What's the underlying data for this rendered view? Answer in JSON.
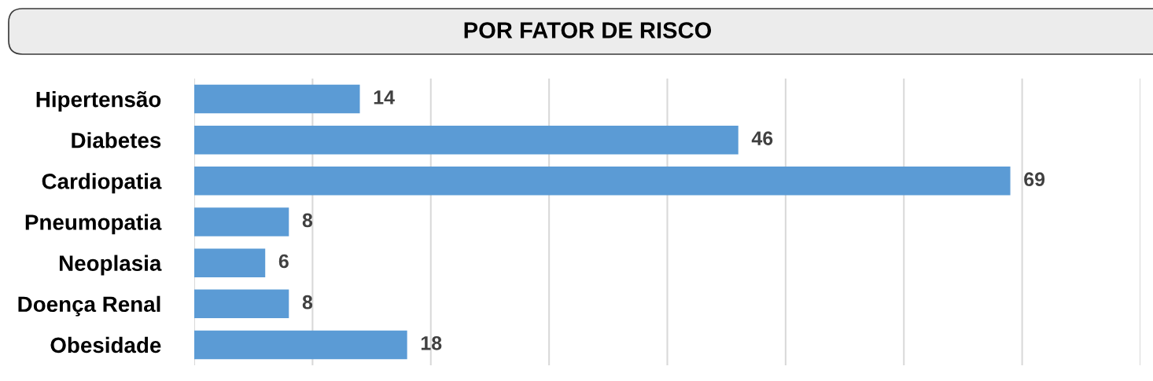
{
  "chart_data": {
    "type": "bar",
    "orientation": "horizontal",
    "title": "POR FATOR DE RISCO",
    "categories": [
      "Hipertensão",
      "Diabetes",
      "Cardiopatia",
      "Pneumopatia",
      "Neoplasia",
      "Doença Renal",
      "Obesidade"
    ],
    "values": [
      14,
      46,
      69,
      8,
      6,
      8,
      18
    ],
    "color": "#5b9bd5",
    "xlim": [
      0,
      80
    ],
    "xticks": [
      {
        "value": 0,
        "label": null
      },
      {
        "value": 10,
        "label": null
      },
      {
        "value": 20,
        "label": null
      },
      {
        "value": 30,
        "label": null
      },
      {
        "value": 40,
        "label": null
      },
      {
        "value": 50,
        "label": null
      },
      {
        "value": 60,
        "label": null
      },
      {
        "value": 70,
        "label": null
      },
      {
        "value": 80,
        "label": null
      }
    ],
    "grid": "x",
    "tick_labels": "y",
    "data_labels": true
  }
}
